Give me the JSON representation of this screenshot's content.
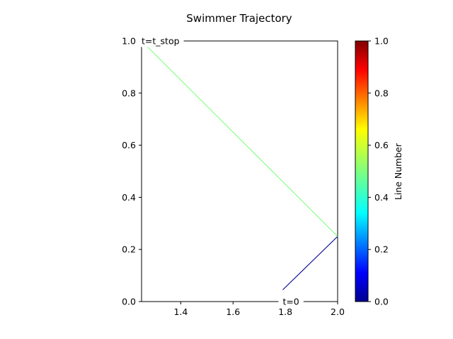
{
  "chart_data": {
    "type": "line",
    "title": "Swimmer Trajectory",
    "xlabel": "",
    "ylabel": "",
    "xlim": [
      1.25,
      2.0
    ],
    "ylim": [
      0.0,
      1.0
    ],
    "x_ticks": [
      "1.4",
      "1.6",
      "1.8",
      "2.0"
    ],
    "y_ticks": [
      "0.0",
      "0.2",
      "0.4",
      "0.6",
      "0.8",
      "1.0"
    ],
    "grid": false,
    "series": [
      {
        "color": "#00008f",
        "points": [
          [
            1.79,
            0.045
          ],
          [
            2.0,
            0.25
          ]
        ]
      },
      {
        "color": "#7fff7f",
        "points": [
          [
            2.0,
            0.25
          ],
          [
            1.27,
            0.98
          ]
        ]
      }
    ],
    "annotations": [
      {
        "text": "t=0",
        "x": 1.79,
        "y": 0.0
      },
      {
        "text": "t=t_stop",
        "x": 1.25,
        "y": 1.0
      }
    ],
    "colorbar": {
      "label": "Line Number",
      "colormap": "jet",
      "range": [
        0.0,
        1.0
      ],
      "ticks": [
        "0.0",
        "0.2",
        "0.4",
        "0.6",
        "0.8",
        "1.0"
      ]
    }
  }
}
